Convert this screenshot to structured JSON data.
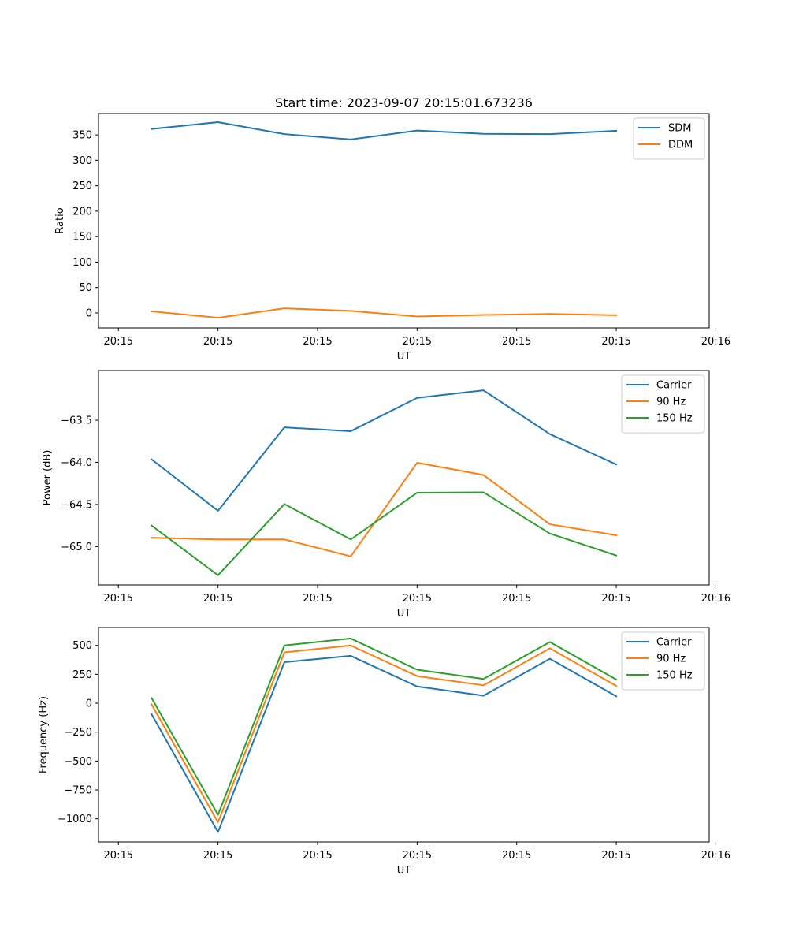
{
  "figure_title": "Start time: 2023-09-07 20:15:01.673236",
  "chart_data": [
    {
      "type": "line",
      "title": "Start time: 2023-09-07 20:15:01.673236",
      "xlabel": "UT",
      "ylabel": "Ratio",
      "x": [
        1,
        2,
        3,
        4,
        5,
        6,
        7,
        8
      ],
      "xlim": [
        0.2,
        9.4
      ],
      "xticks": [
        0.5,
        2,
        3.5,
        5,
        6.5,
        8,
        9.5
      ],
      "xtick_labels": [
        "20:15",
        "20:15",
        "20:15",
        "20:15",
        "20:15",
        "20:15",
        "20:16"
      ],
      "ylim": [
        -29.5,
        392
      ],
      "yticks": [
        0,
        50,
        100,
        150,
        200,
        250,
        300,
        350
      ],
      "ytick_labels": [
        "0",
        "50",
        "100",
        "150",
        "200",
        "250",
        "300",
        "350"
      ],
      "legend_position": "top-right",
      "series": [
        {
          "name": "SDM",
          "color": "#1f77b4",
          "values": [
            361.5,
            375,
            351.5,
            341,
            358.5,
            352,
            351.5,
            358
          ]
        },
        {
          "name": "DDM",
          "color": "#ff7f0e",
          "values": [
            3,
            -9.5,
            9,
            4,
            -7,
            -4,
            -2,
            -4.5
          ]
        }
      ]
    },
    {
      "type": "line",
      "title": "",
      "xlabel": "UT",
      "ylabel": "Power (dB)",
      "x": [
        1,
        2,
        3,
        4,
        5,
        6,
        7,
        8
      ],
      "xlim": [
        0.2,
        9.4
      ],
      "xticks": [
        0.5,
        2,
        3.5,
        5,
        6.5,
        8,
        9.5
      ],
      "xtick_labels": [
        "20:15",
        "20:15",
        "20:15",
        "20:15",
        "20:15",
        "20:15",
        "20:16"
      ],
      "ylim": [
        -65.455,
        -62.91
      ],
      "yticks": [
        -65.0,
        -64.5,
        -64.0,
        -63.5
      ],
      "ytick_labels": [
        "−65.0",
        "−64.5",
        "−64.0",
        "−63.5"
      ],
      "legend_position": "top-right",
      "series": [
        {
          "name": "Carrier",
          "color": "#1f77b4",
          "values": [
            -63.965,
            -64.575,
            -63.585,
            -63.63,
            -63.235,
            -63.145,
            -63.665,
            -64.025
          ]
        },
        {
          "name": "90 Hz",
          "color": "#ff7f0e",
          "values": [
            -64.895,
            -64.915,
            -64.915,
            -65.115,
            -64.005,
            -64.15,
            -64.735,
            -64.865
          ]
        },
        {
          "name": "150 Hz",
          "color": "#2ca02c",
          "values": [
            -64.75,
            -65.34,
            -64.495,
            -64.915,
            -64.36,
            -64.355,
            -64.845,
            -65.105
          ]
        }
      ]
    },
    {
      "type": "line",
      "title": "",
      "xlabel": "UT",
      "ylabel": "Frequency (Hz)",
      "x": [
        1,
        2,
        3,
        4,
        5,
        6,
        7,
        8
      ],
      "xlim": [
        0.2,
        9.4
      ],
      "xticks": [
        0.5,
        2,
        3.5,
        5,
        6.5,
        8,
        9.5
      ],
      "xtick_labels": [
        "20:15",
        "20:15",
        "20:15",
        "20:15",
        "20:15",
        "20:15",
        "20:16"
      ],
      "ylim": [
        -1200,
        655
      ],
      "yticks": [
        -1000,
        -750,
        -500,
        -250,
        0,
        250,
        500
      ],
      "ytick_labels": [
        "−1000",
        "−750",
        "−500",
        "−250",
        "0",
        "250",
        "500"
      ],
      "legend_position": "top-right",
      "series": [
        {
          "name": "Carrier",
          "color": "#1f77b4",
          "values": [
            -95,
            -1115,
            355,
            410,
            145,
            65,
            385,
            60
          ]
        },
        {
          "name": "90 Hz",
          "color": "#ff7f0e",
          "values": [
            -10,
            -1030,
            440,
            500,
            235,
            155,
            475,
            150
          ]
        },
        {
          "name": "150 Hz",
          "color": "#2ca02c",
          "values": [
            45,
            -965,
            500,
            560,
            290,
            210,
            530,
            205
          ]
        }
      ]
    }
  ]
}
